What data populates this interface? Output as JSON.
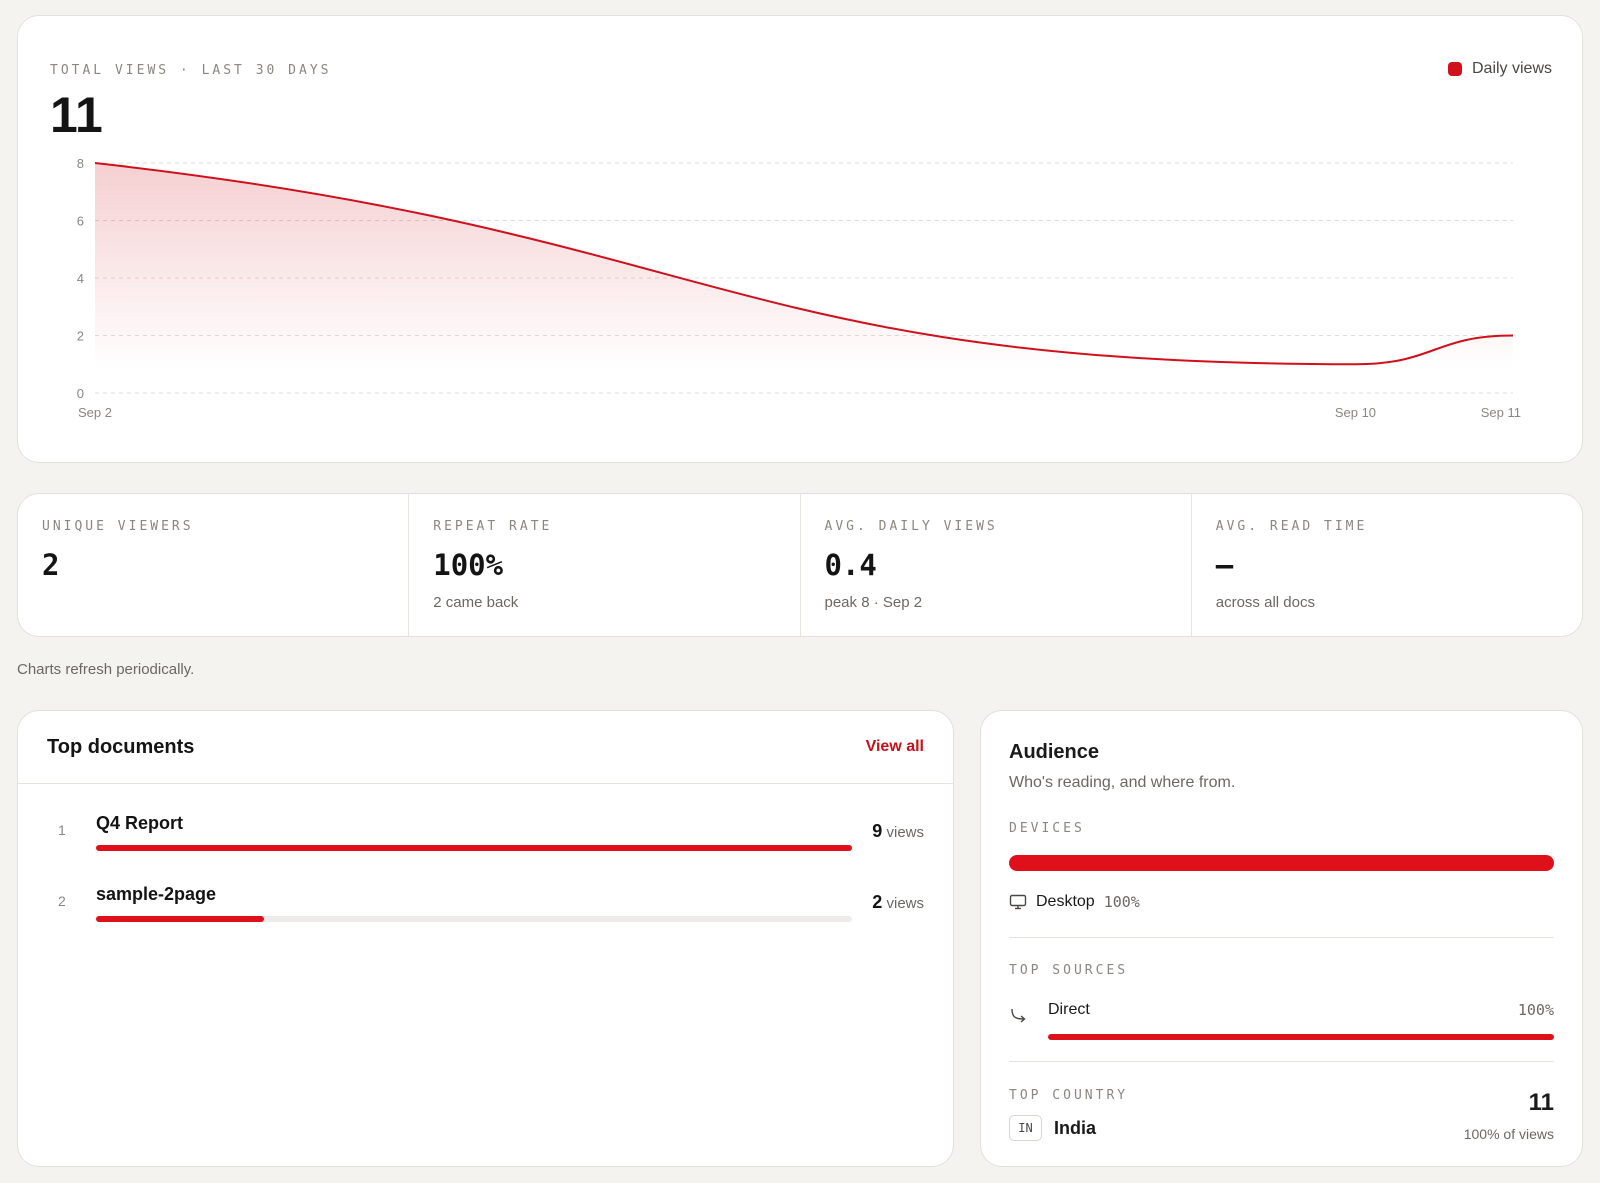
{
  "chart_card": {
    "eyebrow": "TOTAL VIEWS · LAST 30 DAYS",
    "total": "11",
    "legend_label": "Daily views",
    "accent": "#d0101a"
  },
  "chart_data": {
    "type": "area",
    "x": [
      "Sep 2",
      "Sep 10",
      "Sep 11"
    ],
    "series": [
      {
        "name": "Daily views",
        "values": [
          8,
          1,
          2
        ]
      }
    ],
    "y_ticks": [
      0,
      2,
      4,
      6,
      8
    ],
    "ylim": [
      0,
      8
    ],
    "grid": true,
    "legend": "top-right"
  },
  "stats": [
    {
      "label": "UNIQUE VIEWERS",
      "value": "2",
      "sub": ""
    },
    {
      "label": "REPEAT RATE",
      "value": "100%",
      "sub": "2 came back"
    },
    {
      "label": "AVG. DAILY VIEWS",
      "value": "0.4",
      "sub": "peak 8 · Sep 2"
    },
    {
      "label": "AVG. READ TIME",
      "value": "—",
      "sub": "across all docs"
    }
  ],
  "note": "Charts refresh periodically.",
  "top_documents": {
    "title": "Top documents",
    "view_all": "View all",
    "views_unit": "views",
    "items": [
      {
        "rank": "1",
        "name": "Q4 Report",
        "views": "9",
        "share": 1.0
      },
      {
        "rank": "2",
        "name": "sample-2page",
        "views": "2",
        "share": 0.222
      }
    ]
  },
  "audience": {
    "title": "Audience",
    "subtitle": "Who's reading, and where from.",
    "devices_label": "DEVICES",
    "device_name": "Desktop",
    "device_pct": "100%",
    "device_share": 1.0,
    "sources_label": "TOP SOURCES",
    "source_name": "Direct",
    "source_pct": "100%",
    "source_share": 1.0,
    "country_label": "TOP COUNTRY",
    "country_code": "IN",
    "country_name": "India",
    "country_count": "11",
    "country_share_text": "100% of views"
  }
}
